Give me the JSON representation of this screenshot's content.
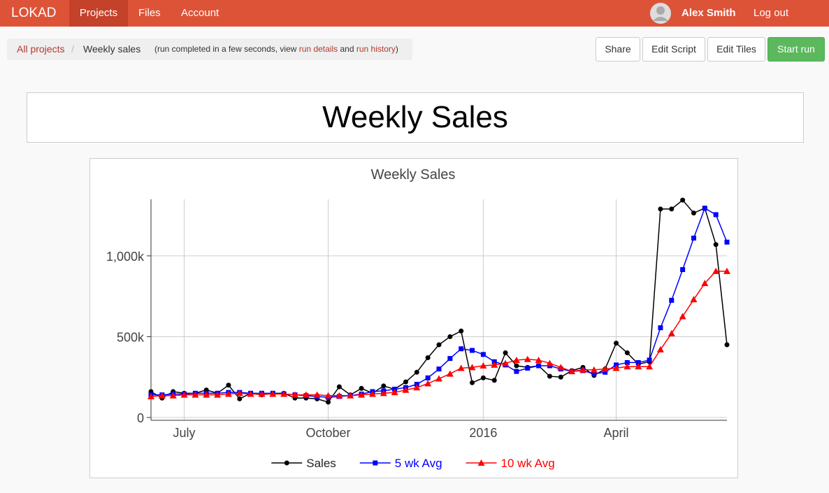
{
  "nav": {
    "brand": "LOKAD",
    "items": [
      "Projects",
      "Files",
      "Account"
    ],
    "user": "Alex Smith",
    "logout": "Log out"
  },
  "breadcrumb": {
    "root": "All projects",
    "current": "Weekly sales",
    "note_parts": [
      "(run completed in a few seconds, view ",
      "run details",
      " and ",
      "run history",
      ")"
    ]
  },
  "buttons": [
    "Share",
    "Edit Script",
    "Edit Tiles",
    "Start run"
  ],
  "tile": {
    "title": "Weekly Sales"
  },
  "chart_data": {
    "type": "line",
    "title": "Weekly Sales",
    "categories": [
      null,
      null,
      null,
      "July",
      null,
      null,
      null,
      null,
      null,
      null,
      null,
      null,
      null,
      null,
      null,
      null,
      "October",
      null,
      null,
      null,
      null,
      null,
      null,
      null,
      null,
      null,
      null,
      null,
      null,
      null,
      "2016",
      null,
      null,
      null,
      null,
      null,
      null,
      null,
      null,
      null,
      null,
      null,
      "April",
      null,
      null,
      null,
      null,
      null,
      null,
      null,
      null,
      null,
      null
    ],
    "series": [
      {
        "name": "Sales",
        "color": "#000000",
        "marker": "circle",
        "values": [
          160000,
          120000,
          160000,
          150000,
          150000,
          170000,
          150000,
          200000,
          115000,
          150000,
          140000,
          150000,
          150000,
          120000,
          120000,
          115000,
          95000,
          190000,
          140000,
          180000,
          150000,
          195000,
          175000,
          220000,
          280000,
          370000,
          450000,
          500000,
          535000,
          215000,
          245000,
          230000,
          400000,
          320000,
          310000,
          320000,
          255000,
          250000,
          290000,
          310000,
          260000,
          300000,
          460000,
          400000,
          330000,
          345000,
          1290000,
          1290000,
          1345000,
          1265000,
          1295000,
          1070000,
          450000
        ]
      },
      {
        "name": "5 wk Avg",
        "color": "#0000ff",
        "marker": "square",
        "values": [
          140000,
          140000,
          145000,
          145000,
          150000,
          150000,
          150000,
          155000,
          155000,
          150000,
          150000,
          150000,
          145000,
          140000,
          135000,
          130000,
          125000,
          130000,
          135000,
          145000,
          160000,
          165000,
          175000,
          185000,
          205000,
          245000,
          300000,
          365000,
          425000,
          415000,
          390000,
          345000,
          325000,
          285000,
          305000,
          320000,
          320000,
          300000,
          285000,
          290000,
          270000,
          280000,
          325000,
          340000,
          340000,
          355000,
          555000,
          725000,
          915000,
          1110000,
          1295000,
          1255000,
          1085000
        ]
      },
      {
        "name": "10 wk Avg",
        "color": "#ff0000",
        "marker": "triangle",
        "values": [
          130000,
          135000,
          135000,
          140000,
          140000,
          140000,
          140000,
          145000,
          150000,
          145000,
          145000,
          145000,
          145000,
          140000,
          140000,
          140000,
          135000,
          135000,
          135000,
          140000,
          145000,
          150000,
          155000,
          170000,
          185000,
          210000,
          240000,
          270000,
          305000,
          310000,
          320000,
          325000,
          335000,
          355000,
          360000,
          355000,
          335000,
          310000,
          285000,
          295000,
          295000,
          300000,
          305000,
          315000,
          315000,
          315000,
          420000,
          520000,
          625000,
          730000,
          830000,
          905000,
          905000
        ]
      }
    ],
    "ylim": [
      0,
      1350000
    ],
    "yticks": [
      0,
      {
        "value": 500000,
        "label": "500k"
      },
      {
        "value": 1000000,
        "label": "1,000k"
      }
    ],
    "grid": true,
    "legend": "bottom"
  }
}
